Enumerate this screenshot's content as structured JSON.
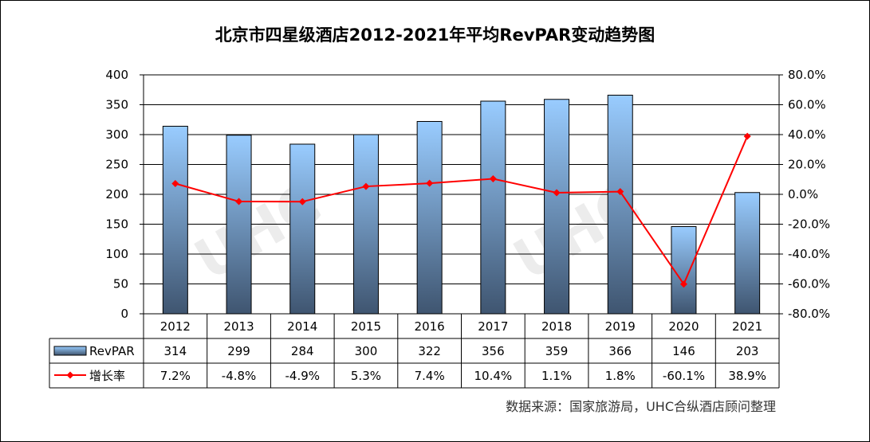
{
  "title": "北京市四星级酒店2012-2021年平均RevPAR变动趋势图",
  "source": "数据来源：国家旅游局，UHC合纵酒店顾问整理",
  "colors": {
    "bar_top": "#99CCFF",
    "bar_bottom": "#3F5570",
    "line": "#FF0000",
    "axis": "#000000"
  },
  "chart_data": {
    "type": "bar",
    "categories": [
      "2012",
      "2013",
      "2014",
      "2015",
      "2016",
      "2017",
      "2018",
      "2019",
      "2020",
      "2021"
    ],
    "series": [
      {
        "name": "RevPAR",
        "type": "bar",
        "axis": "left",
        "values": [
          314,
          299,
          284,
          300,
          322,
          356,
          359,
          366,
          146,
          203
        ],
        "labels": [
          "314",
          "299",
          "284",
          "300",
          "322",
          "356",
          "359",
          "366",
          "146",
          "203"
        ]
      },
      {
        "name": "增长率",
        "type": "line",
        "axis": "right",
        "values": [
          7.2,
          -4.8,
          -4.9,
          5.3,
          7.4,
          10.4,
          1.1,
          1.8,
          -60.1,
          38.9
        ],
        "labels": [
          "7.2%",
          "-4.8%",
          "-4.9%",
          "5.3%",
          "7.4%",
          "10.4%",
          "1.1%",
          "1.8%",
          "-60.1%",
          "38.9%"
        ]
      }
    ],
    "y_left": {
      "min": 0,
      "max": 400,
      "step": 50,
      "ticks": [
        "0",
        "50",
        "100",
        "150",
        "200",
        "250",
        "300",
        "350",
        "400"
      ]
    },
    "y_right": {
      "min": -80,
      "max": 80,
      "step": 20,
      "ticks": [
        "-80.0%",
        "-60.0%",
        "-40.0%",
        "-20.0%",
        "0.0%",
        "20.0%",
        "40.0%",
        "60.0%",
        "80.0%"
      ]
    },
    "grid": true,
    "legend": "data-table"
  }
}
